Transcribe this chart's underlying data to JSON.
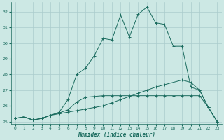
{
  "xlabel": "Humidex (Indice chaleur)",
  "x_values": [
    0,
    1,
    2,
    3,
    4,
    5,
    6,
    7,
    8,
    9,
    10,
    11,
    12,
    13,
    14,
    15,
    16,
    17,
    18,
    19,
    20,
    21,
    22,
    23
  ],
  "line1_y": [
    25.2,
    25.3,
    25.1,
    25.2,
    25.4,
    25.5,
    25.6,
    25.7,
    25.8,
    25.9,
    26.0,
    26.2,
    26.4,
    26.6,
    26.8,
    27.0,
    27.2,
    27.35,
    27.5,
    27.65,
    27.5,
    27.0,
    25.9,
    25.0
  ],
  "line2_y": [
    25.2,
    25.3,
    25.1,
    25.2,
    25.4,
    25.6,
    26.4,
    28.0,
    28.4,
    29.2,
    30.3,
    30.2,
    31.8,
    30.4,
    31.85,
    32.3,
    31.3,
    31.2,
    29.8,
    29.8,
    27.2,
    27.0,
    25.9,
    25.0
  ],
  "line3_y": [
    25.2,
    25.3,
    25.1,
    25.2,
    25.4,
    25.55,
    25.75,
    26.25,
    26.55,
    26.6,
    26.65,
    26.65,
    26.65,
    26.65,
    26.65,
    26.65,
    26.65,
    26.65,
    26.65,
    26.65,
    26.65,
    26.65,
    25.9,
    25.0
  ],
  "bg_color": "#cce8e4",
  "grid_color": "#aacccc",
  "line_color": "#1a6b5e",
  "ylim": [
    24.85,
    32.6
  ],
  "yticks": [
    25,
    26,
    27,
    28,
    29,
    30,
    31,
    32
  ],
  "xlim": [
    -0.5,
    23.5
  ]
}
